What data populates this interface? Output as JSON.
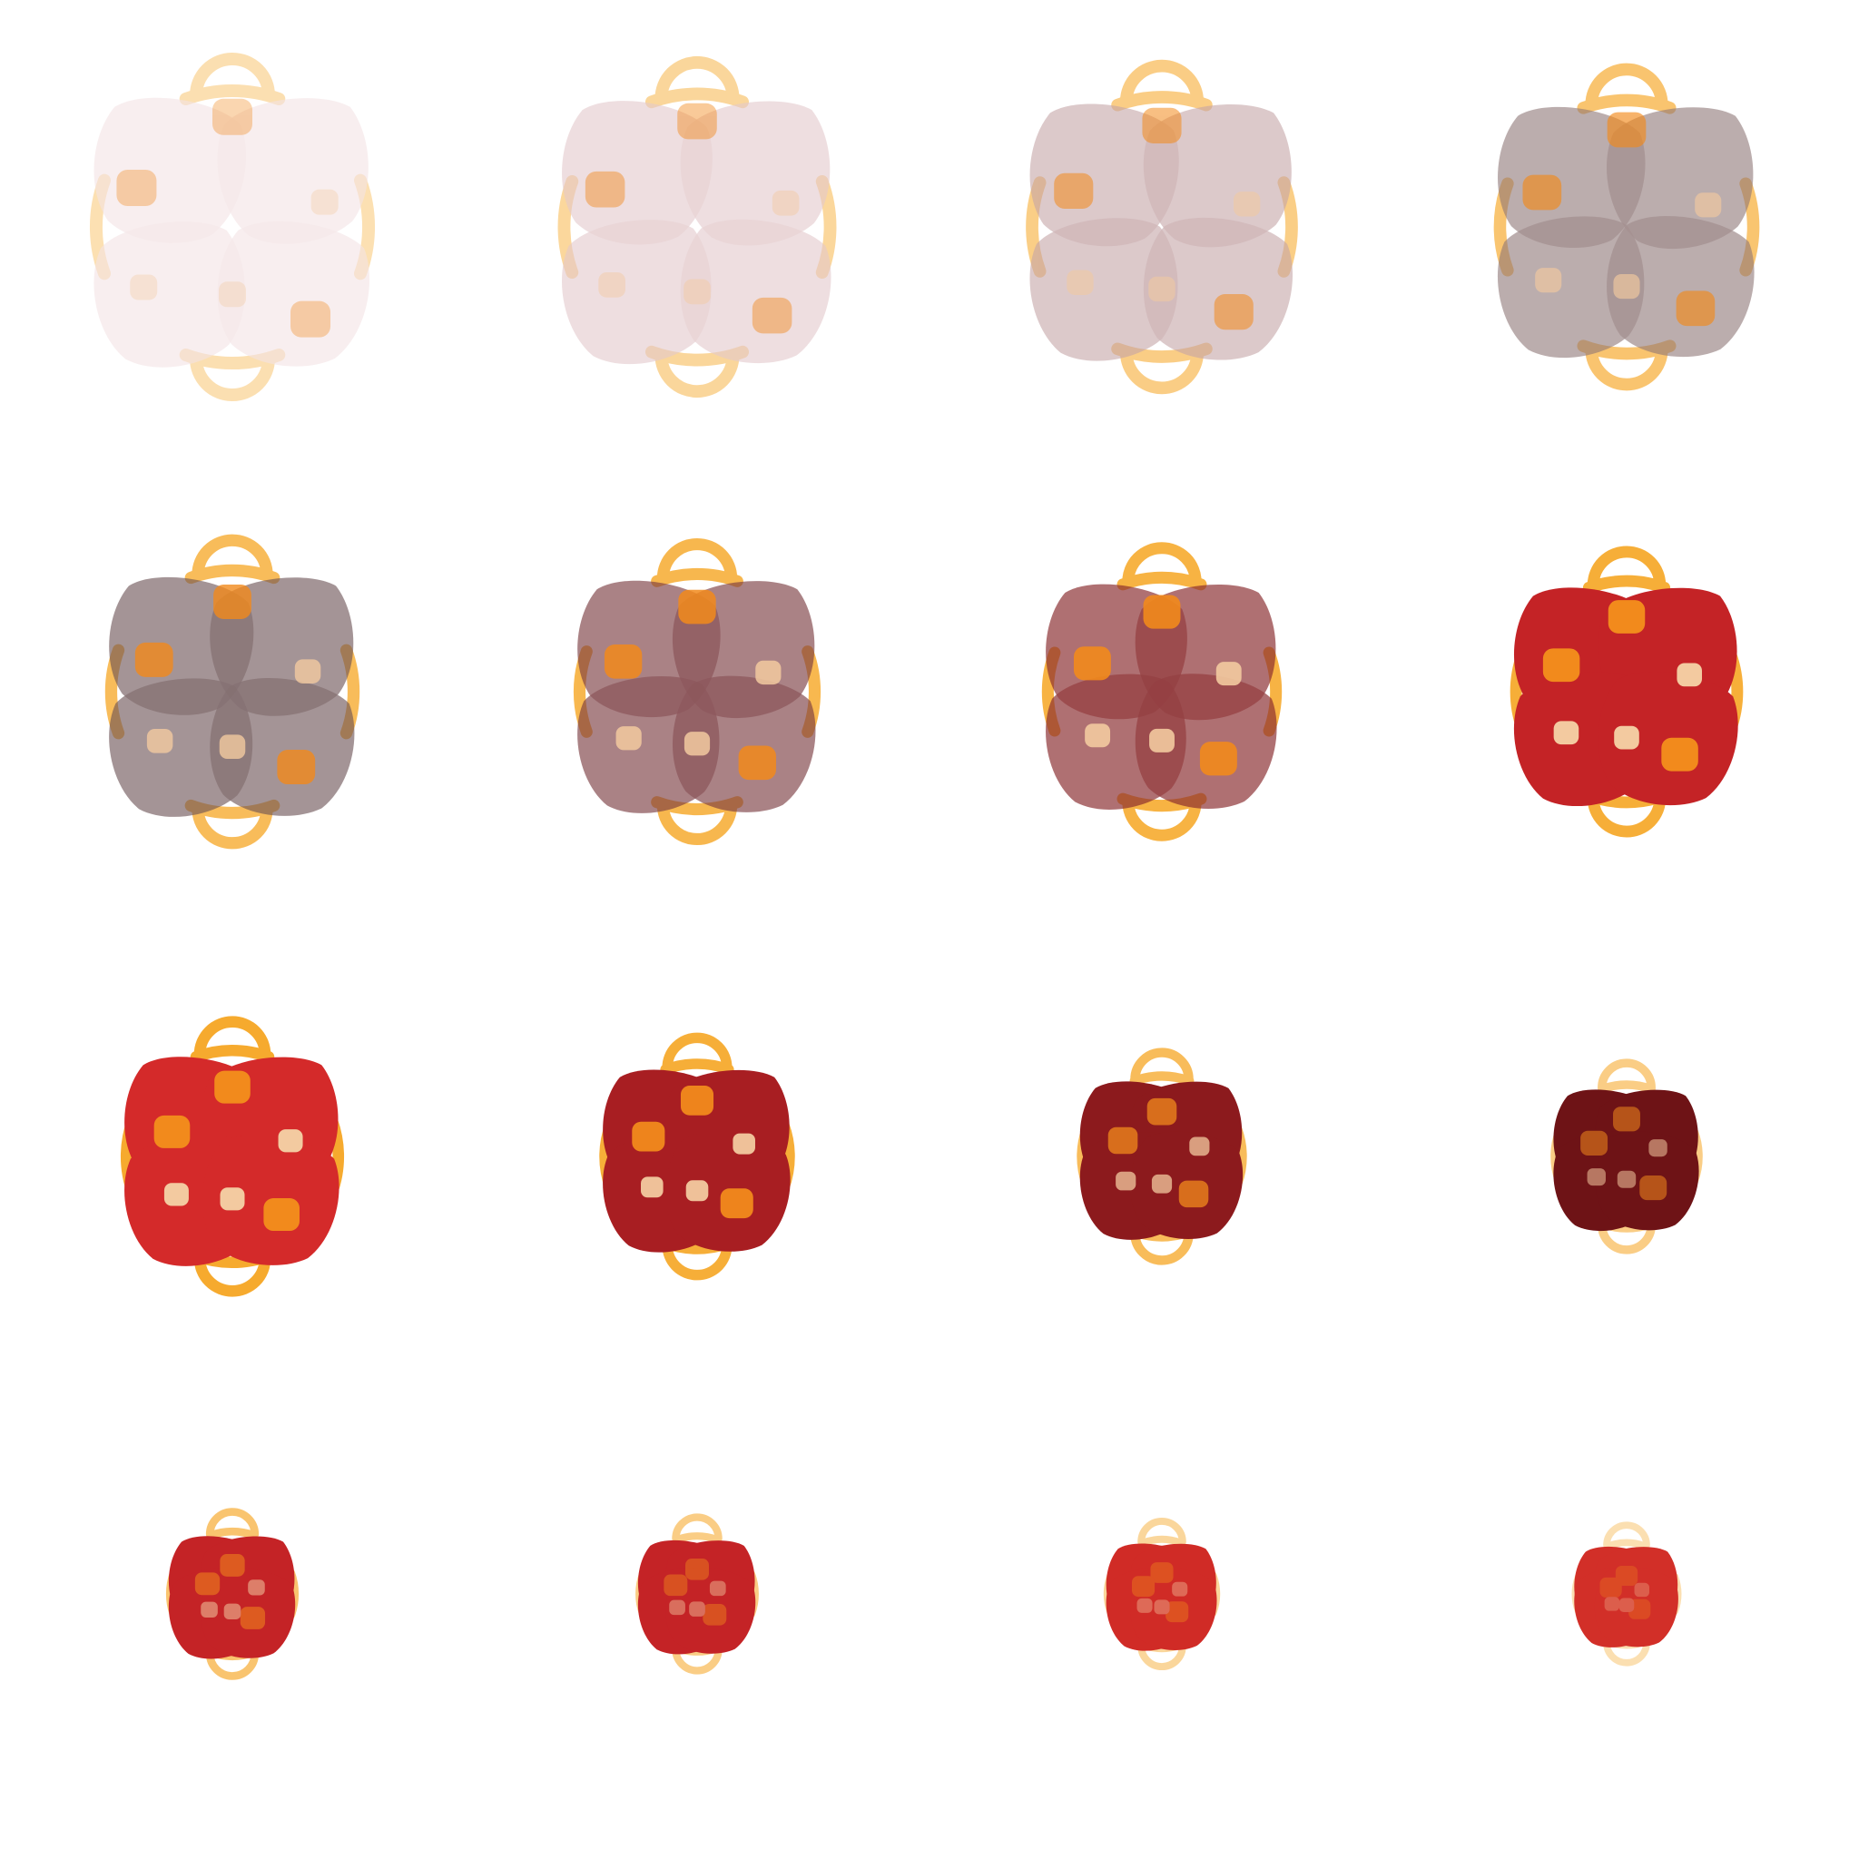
{
  "sheet": {
    "columns": 4,
    "rows": 4,
    "background": "#ffffff"
  },
  "palette": {
    "ring": "#f6a623",
    "nugget_orange": "#f28a1c",
    "nugget_cream": "#f3caa0"
  },
  "frames": [
    {
      "index": 1,
      "petal_color": "#f3e3e4",
      "opacity": 0.8,
      "spread": 1.0,
      "ring_opacity": 0.35,
      "scale": 1.0,
      "nugget_opacity": 0.35
    },
    {
      "index": 2,
      "petal_color": "#e3c8cb",
      "opacity": 0.8,
      "spread": 0.97,
      "ring_opacity": 0.45,
      "scale": 0.99,
      "nugget_opacity": 0.45
    },
    {
      "index": 3,
      "petal_color": "#c4a4a7",
      "opacity": 0.8,
      "spread": 0.94,
      "ring_opacity": 0.55,
      "scale": 0.98,
      "nugget_opacity": 0.55
    },
    {
      "index": 4,
      "petal_color": "#8e7676",
      "opacity": 0.8,
      "spread": 0.91,
      "ring_opacity": 0.65,
      "scale": 0.97,
      "nugget_opacity": 0.65
    },
    {
      "index": 5,
      "petal_color": "#6b5254",
      "opacity": 0.82,
      "spread": 0.86,
      "ring_opacity": 0.75,
      "scale": 0.95,
      "nugget_opacity": 0.8
    },
    {
      "index": 6,
      "petal_color": "#7a3b40",
      "opacity": 0.85,
      "spread": 0.82,
      "ring_opacity": 0.8,
      "scale": 0.94,
      "nugget_opacity": 0.85
    },
    {
      "index": 7,
      "petal_color": "#8a2c2f",
      "opacity": 0.9,
      "spread": 0.78,
      "ring_opacity": 0.85,
      "scale": 0.93,
      "nugget_opacity": 0.9
    },
    {
      "index": 8,
      "petal_color": "#c42326",
      "opacity": 1.0,
      "spread": 0.74,
      "ring_opacity": 0.9,
      "scale": 0.92,
      "nugget_opacity": 1.0
    },
    {
      "index": 9,
      "petal_color": "#d42a2a",
      "opacity": 1.0,
      "spread": 0.7,
      "ring_opacity": 0.95,
      "scale": 0.9,
      "nugget_opacity": 1.0
    },
    {
      "index": 10,
      "petal_color": "#a81e22",
      "opacity": 1.0,
      "spread": 0.62,
      "ring_opacity": 0.9,
      "scale": 0.82,
      "nugget_opacity": 0.95
    },
    {
      "index": 11,
      "petal_color": "#8c1a1d",
      "opacity": 1.0,
      "spread": 0.55,
      "ring_opacity": 0.75,
      "scale": 0.74,
      "nugget_opacity": 0.75
    },
    {
      "index": 12,
      "petal_color": "#6e1316",
      "opacity": 1.0,
      "spread": 0.5,
      "ring_opacity": 0.55,
      "scale": 0.68,
      "nugget_opacity": 0.55
    },
    {
      "index": 13,
      "petal_color": "#c42326",
      "opacity": 1.0,
      "spread": 0.42,
      "ring_opacity": 0.65,
      "scale": 0.62,
      "nugget_opacity": 0.55
    },
    {
      "index": 14,
      "petal_color": "#c42326",
      "opacity": 1.0,
      "spread": 0.38,
      "ring_opacity": 0.55,
      "scale": 0.59,
      "nugget_opacity": 0.45
    },
    {
      "index": 15,
      "petal_color": "#d02b26",
      "opacity": 1.0,
      "spread": 0.34,
      "ring_opacity": 0.45,
      "scale": 0.57,
      "nugget_opacity": 0.4
    },
    {
      "index": 16,
      "petal_color": "#d22f28",
      "opacity": 1.0,
      "spread": 0.3,
      "ring_opacity": 0.35,
      "scale": 0.55,
      "nugget_opacity": 0.3
    }
  ]
}
